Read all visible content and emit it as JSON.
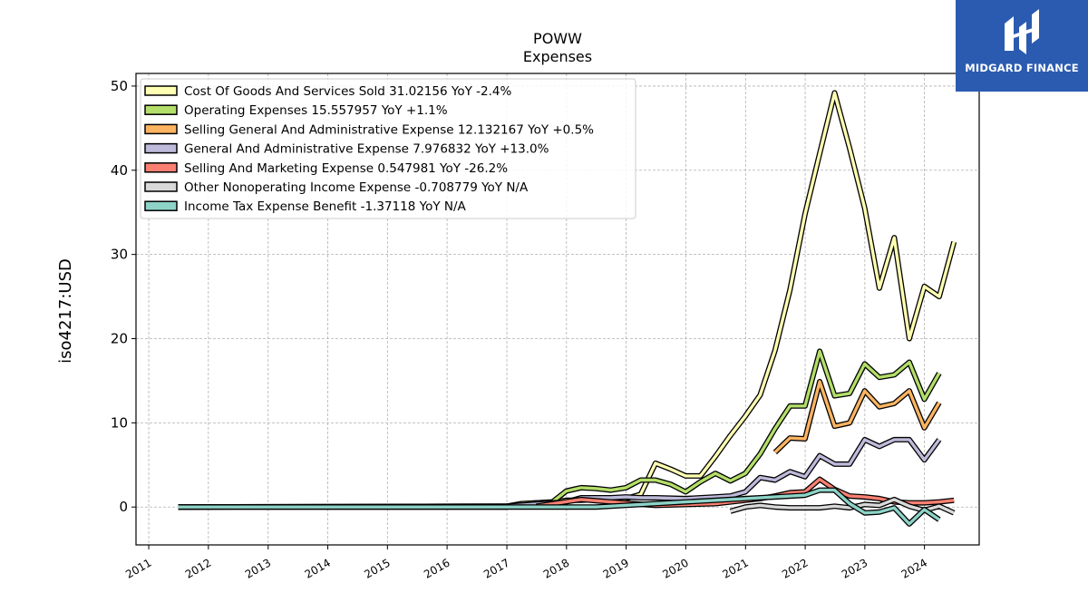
{
  "logo": {
    "text": "MIDGARD FINANCE",
    "background": "#2b5bb0"
  },
  "chart_data": {
    "type": "line",
    "title": "POWW",
    "subtitle": "Expenses",
    "xlabel": "",
    "ylabel": "iso4217:USD",
    "xlim": [
      "2010-10-15",
      "2024-12-01"
    ],
    "ylim": [
      -4.5,
      51.5
    ],
    "yticks": [
      0,
      10,
      20,
      30,
      40,
      50
    ],
    "xticks": [
      "2011",
      "2012",
      "2013",
      "2014",
      "2015",
      "2016",
      "2017",
      "2018",
      "2019",
      "2020",
      "2021",
      "2022",
      "2023",
      "2024"
    ],
    "grid": true,
    "legend_position": "top-left",
    "series": [
      {
        "name": "Cost Of Goods And Services Sold",
        "legend": "Cost Of Goods And Services Sold  31.02156 YoY -2.4%",
        "color": "#ffffb3",
        "points": [
          [
            "2011-06-30",
            0
          ],
          [
            "2016-12-31",
            0
          ],
          [
            "2017-03-31",
            0.3
          ],
          [
            "2017-06-30",
            0.5
          ],
          [
            "2017-09-30",
            0.6
          ],
          [
            "2017-12-31",
            0.8
          ],
          [
            "2018-03-31",
            0.8
          ],
          [
            "2018-06-30",
            0.9
          ],
          [
            "2018-09-30",
            0.9
          ],
          [
            "2018-12-31",
            1.0
          ],
          [
            "2019-03-31",
            1.5
          ],
          [
            "2019-06-30",
            5.2
          ],
          [
            "2019-09-30",
            4.5
          ],
          [
            "2019-12-31",
            3.7
          ],
          [
            "2020-03-31",
            3.7
          ],
          [
            "2020-06-30",
            6.0
          ],
          [
            "2020-09-30",
            8.5
          ],
          [
            "2020-12-31",
            10.8
          ],
          [
            "2021-03-31",
            13.3
          ],
          [
            "2021-06-30",
            18.6
          ],
          [
            "2021-09-30",
            25.8
          ],
          [
            "2021-12-31",
            34.8
          ],
          [
            "2022-03-31",
            42.0
          ],
          [
            "2022-06-30",
            49.2
          ],
          [
            "2022-09-30",
            42.6
          ],
          [
            "2022-12-31",
            35.5
          ],
          [
            "2023-03-31",
            26.0
          ],
          [
            "2023-06-30",
            32.0
          ],
          [
            "2023-09-30",
            20.0
          ],
          [
            "2023-12-31",
            26.2
          ],
          [
            "2024-03-31",
            25.0
          ],
          [
            "2024-06-30",
            31.5
          ]
        ]
      },
      {
        "name": "Operating Expenses",
        "legend": "Operating Expenses  15.557957 YoY +1.1%",
        "color": "#b3de69",
        "points": [
          [
            "2011-06-30",
            0
          ],
          [
            "2016-12-31",
            0.1
          ],
          [
            "2017-03-31",
            0.4
          ],
          [
            "2017-06-30",
            0.5
          ],
          [
            "2017-09-30",
            0.5
          ],
          [
            "2017-12-31",
            1.9
          ],
          [
            "2018-03-31",
            2.3
          ],
          [
            "2018-06-30",
            2.2
          ],
          [
            "2018-09-30",
            2.0
          ],
          [
            "2018-12-31",
            2.3
          ],
          [
            "2019-03-31",
            3.2
          ],
          [
            "2019-06-30",
            3.2
          ],
          [
            "2019-09-30",
            2.7
          ],
          [
            "2019-12-31",
            1.8
          ],
          [
            "2020-03-31",
            3.0
          ],
          [
            "2020-06-30",
            4.0
          ],
          [
            "2020-09-30",
            3.1
          ],
          [
            "2020-12-31",
            4.0
          ],
          [
            "2021-03-31",
            6.3
          ],
          [
            "2021-06-30",
            9.3
          ],
          [
            "2021-09-30",
            12.0
          ],
          [
            "2021-12-31",
            12.0
          ],
          [
            "2022-03-31",
            18.5
          ],
          [
            "2022-06-30",
            13.2
          ],
          [
            "2022-09-30",
            13.5
          ],
          [
            "2022-12-31",
            17.0
          ],
          [
            "2023-03-31",
            15.4
          ],
          [
            "2023-06-30",
            15.7
          ],
          [
            "2023-09-30",
            17.2
          ],
          [
            "2023-12-31",
            12.8
          ],
          [
            "2024-03-31",
            15.9
          ]
        ]
      },
      {
        "name": "Selling General And Administrative Expense",
        "legend": "Selling General And Administrative Expense  12.132167 YoY +0.5%",
        "color": "#fdb462",
        "points": [
          [
            "2021-06-30",
            6.5
          ],
          [
            "2021-09-30",
            8.2
          ],
          [
            "2021-12-31",
            8.1
          ],
          [
            "2022-03-31",
            14.9
          ],
          [
            "2022-06-30",
            9.6
          ],
          [
            "2022-09-30",
            10.0
          ],
          [
            "2022-12-31",
            13.8
          ],
          [
            "2023-03-31",
            11.9
          ],
          [
            "2023-06-30",
            12.3
          ],
          [
            "2023-09-30",
            13.8
          ],
          [
            "2023-12-31",
            9.4
          ],
          [
            "2024-03-31",
            12.4
          ]
        ]
      },
      {
        "name": "General And Administrative Expense",
        "legend": "General And Administrative Expense  7.976832 YoY +13.0%",
        "color": "#bebada",
        "points": [
          [
            "2011-06-30",
            0
          ],
          [
            "2016-12-31",
            0.1
          ],
          [
            "2017-12-31",
            0.6
          ],
          [
            "2018-03-31",
            1.1
          ],
          [
            "2018-06-30",
            1.1
          ],
          [
            "2018-09-30",
            1.1
          ],
          [
            "2018-12-31",
            1.2
          ],
          [
            "2019-03-31",
            1.1
          ],
          [
            "2019-06-30",
            1.1
          ],
          [
            "2019-12-31",
            1.0
          ],
          [
            "2020-06-30",
            1.2
          ],
          [
            "2020-09-30",
            1.3
          ],
          [
            "2020-12-31",
            1.8
          ],
          [
            "2021-03-31",
            3.5
          ],
          [
            "2021-06-30",
            3.2
          ],
          [
            "2021-09-30",
            4.2
          ],
          [
            "2021-12-31",
            3.6
          ],
          [
            "2022-03-31",
            6.1
          ],
          [
            "2022-06-30",
            5.1
          ],
          [
            "2022-09-30",
            5.1
          ],
          [
            "2022-12-31",
            8.0
          ],
          [
            "2023-03-31",
            7.2
          ],
          [
            "2023-06-30",
            8.0
          ],
          [
            "2023-09-30",
            8.0
          ],
          [
            "2023-12-31",
            5.6
          ],
          [
            "2024-03-31",
            8.0
          ]
        ]
      },
      {
        "name": "Selling And Marketing Expense",
        "legend": "Selling And Marketing Expense  0.547981 YoY -26.2%",
        "color": "#fb8072",
        "points": [
          [
            "2017-06-30",
            0.1
          ],
          [
            "2018-03-31",
            0.9
          ],
          [
            "2018-09-30",
            0.6
          ],
          [
            "2019-06-30",
            0.2
          ],
          [
            "2020-06-30",
            0.4
          ],
          [
            "2021-03-31",
            1.0
          ],
          [
            "2021-06-30",
            1.3
          ],
          [
            "2021-09-30",
            1.7
          ],
          [
            "2021-12-31",
            1.8
          ],
          [
            "2022-03-31",
            3.3
          ],
          [
            "2022-06-30",
            2.1
          ],
          [
            "2022-09-30",
            1.3
          ],
          [
            "2022-12-31",
            1.2
          ],
          [
            "2023-03-31",
            1.0
          ],
          [
            "2023-06-30",
            0.6
          ],
          [
            "2023-09-30",
            0.5
          ],
          [
            "2023-12-31",
            0.5
          ],
          [
            "2024-03-31",
            0.6
          ],
          [
            "2024-06-30",
            0.8
          ]
        ]
      },
      {
        "name": "Other Nonoperating Income Expense",
        "legend": "Other Nonoperating Income Expense  -0.708779 YoY N/A",
        "color": "#d9d9d9",
        "points": [
          [
            "2020-09-30",
            -0.5
          ],
          [
            "2020-12-31",
            0.0
          ],
          [
            "2021-03-31",
            0.2
          ],
          [
            "2021-06-30",
            0.0
          ],
          [
            "2021-09-30",
            -0.1
          ],
          [
            "2021-12-31",
            -0.1
          ],
          [
            "2022-03-31",
            -0.1
          ],
          [
            "2022-06-30",
            0.1
          ],
          [
            "2022-09-30",
            -0.1
          ],
          [
            "2022-12-31",
            0.3
          ],
          [
            "2023-03-31",
            0.2
          ],
          [
            "2023-06-30",
            0.9
          ],
          [
            "2023-09-30",
            0.1
          ],
          [
            "2023-12-31",
            -0.4
          ],
          [
            "2024-03-31",
            0.1
          ],
          [
            "2024-06-30",
            -0.7
          ]
        ]
      },
      {
        "name": "Income Tax Expense Benefit",
        "legend": "Income Tax Expense Benefit  -1.37118 YoY N/A",
        "color": "#8dd3c7",
        "points": [
          [
            "2011-06-30",
            0
          ],
          [
            "2018-06-30",
            0
          ],
          [
            "2019-03-31",
            0.3
          ],
          [
            "2019-12-31",
            0.6
          ],
          [
            "2020-06-30",
            0.8
          ],
          [
            "2020-12-31",
            1.0
          ],
          [
            "2021-06-30",
            1.2
          ],
          [
            "2021-12-31",
            1.4
          ],
          [
            "2022-03-31",
            2.0
          ],
          [
            "2022-06-30",
            2.0
          ],
          [
            "2022-09-30",
            0.4
          ],
          [
            "2022-12-31",
            -0.7
          ],
          [
            "2023-03-31",
            -0.6
          ],
          [
            "2023-06-30",
            -0.1
          ],
          [
            "2023-09-30",
            -2.0
          ],
          [
            "2023-12-31",
            -0.3
          ],
          [
            "2024-03-31",
            -1.5
          ]
        ]
      }
    ]
  }
}
